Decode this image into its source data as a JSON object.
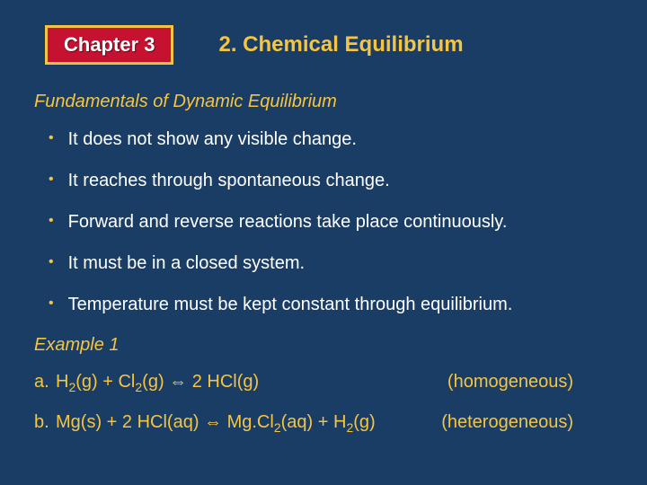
{
  "colors": {
    "background": "#1a3d66",
    "accent": "#f5c542",
    "badge_bg": "#c41230",
    "badge_border": "#f5c542",
    "badge_text": "#ffffff",
    "body_text": "#ffffff"
  },
  "header": {
    "chapter_label": "Chapter  3",
    "title": "2. Chemical Equilibrium"
  },
  "subtitle": "Fundamentals of Dynamic Equilibrium",
  "bullets": [
    "It does not show any visible change.",
    "It reaches through spontaneous change.",
    "Forward and reverse reactions take place continuously.",
    "It must be in a closed system.",
    "Temperature must be kept constant through equilibrium."
  ],
  "example_label": "Example 1",
  "equations": [
    {
      "letter": "a.",
      "parts": [
        "H",
        "sub:2",
        "(g)  +  Cl",
        "sub:2",
        "(g)  ",
        "arrow:⇔",
        "  2 HCl(g)"
      ],
      "type": "(homogeneous)"
    },
    {
      "letter": "b.",
      "parts": [
        " Mg(s) + 2 HCl(aq) ",
        "arrow:⇔",
        " Mg.Cl",
        "sub:2",
        "(aq) + H",
        "sub:2",
        "(g)"
      ],
      "type": "(heterogeneous)"
    }
  ]
}
